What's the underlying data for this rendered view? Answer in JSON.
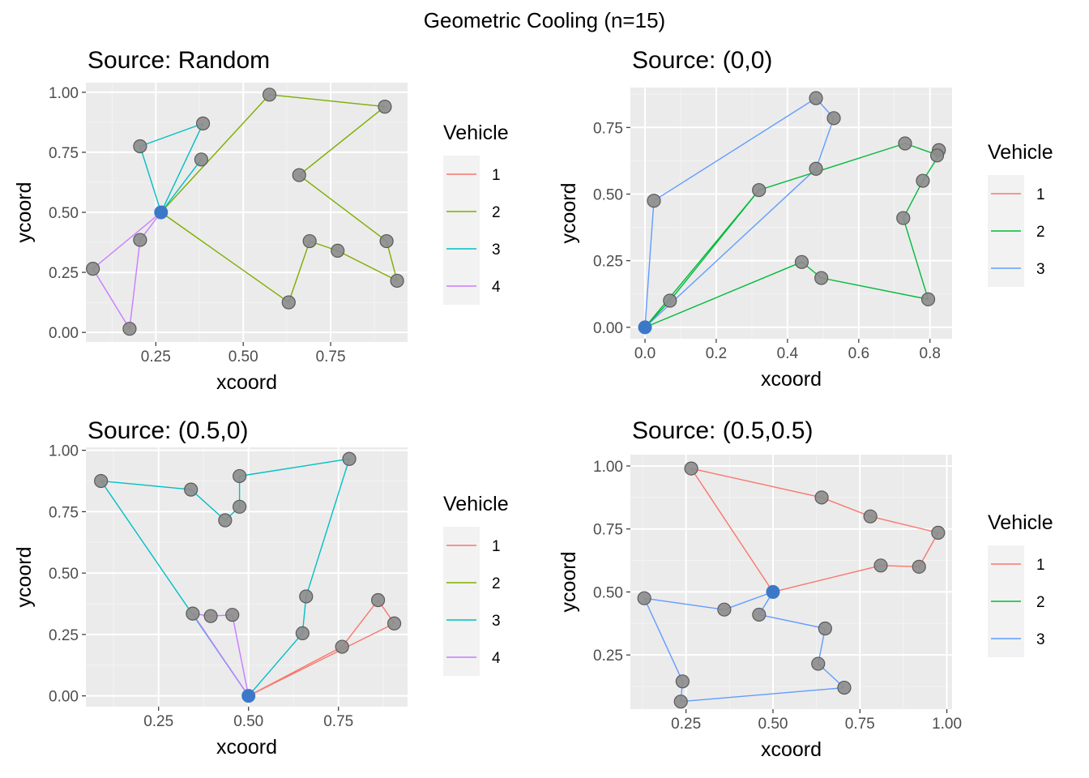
{
  "figure": {
    "title": "Geometric Cooling (n=15)",
    "colors": {
      "panel_bg": "#EBEBEB",
      "grid_major": "#FFFFFF",
      "grid_minor": "#F3F3F3",
      "point_fill": "#8C8C8C",
      "point_stroke": "#5A5A5A",
      "source_point": "#3C78C8",
      "vehicle_4": [
        "#F8766D",
        "#7CAE00",
        "#00BFC4",
        "#C77CFF"
      ],
      "vehicle_3": [
        "#F8766D",
        "#00BA38",
        "#619CFF"
      ]
    }
  },
  "chart_data": [
    {
      "type": "line",
      "title": "Source: Random",
      "xlabel": "xcoord",
      "ylabel": "ycoord",
      "xlim": [
        0.05,
        0.97
      ],
      "ylim": [
        -0.04,
        1.04
      ],
      "xticks": [
        {
          "v": 0.25,
          "label": "0.25"
        },
        {
          "v": 0.5,
          "label": "0.50"
        },
        {
          "v": 0.75,
          "label": "0.75"
        }
      ],
      "yticks": [
        {
          "v": 0,
          "label": "0.00"
        },
        {
          "v": 0.25,
          "label": "0.25"
        },
        {
          "v": 0.5,
          "label": "0.50"
        },
        {
          "v": 0.75,
          "label": "0.75"
        },
        {
          "v": 1,
          "label": "1.00"
        }
      ],
      "legend": {
        "title": "Vehicle",
        "entries": [
          "1",
          "2",
          "3",
          "4"
        ],
        "palette": "vehicle_4",
        "placement": "right"
      },
      "source": [
        0.265,
        0.5
      ],
      "points": [
        [
          0.575,
          0.99
        ],
        [
          0.905,
          0.94
        ],
        [
          0.66,
          0.655
        ],
        [
          0.91,
          0.38
        ],
        [
          0.94,
          0.215
        ],
        [
          0.69,
          0.38
        ],
        [
          0.77,
          0.34
        ],
        [
          0.63,
          0.125
        ],
        [
          0.385,
          0.87
        ],
        [
          0.205,
          0.775
        ],
        [
          0.38,
          0.72
        ],
        [
          0.205,
          0.385
        ],
        [
          0.07,
          0.265
        ],
        [
          0.175,
          0.015
        ]
      ],
      "routes": [
        {
          "vehicle": 2,
          "path": [
            [
              0.265,
              0.5
            ],
            [
              0.575,
              0.99
            ],
            [
              0.905,
              0.94
            ],
            [
              0.66,
              0.655
            ],
            [
              0.91,
              0.38
            ],
            [
              0.94,
              0.215
            ]
          ]
        },
        {
          "vehicle": 2,
          "path": [
            [
              0.265,
              0.5
            ],
            [
              0.63,
              0.125
            ],
            [
              0.69,
              0.38
            ],
            [
              0.77,
              0.34
            ],
            [
              0.94,
              0.215
            ]
          ]
        },
        {
          "vehicle": 3,
          "path": [
            [
              0.265,
              0.5
            ],
            [
              0.385,
              0.87
            ],
            [
              0.205,
              0.775
            ],
            [
              0.265,
              0.5
            ],
            [
              0.38,
              0.72
            ],
            [
              0.265,
              0.5
            ]
          ]
        },
        {
          "vehicle": 4,
          "path": [
            [
              0.265,
              0.5
            ],
            [
              0.07,
              0.265
            ],
            [
              0.175,
              0.015
            ],
            [
              0.205,
              0.385
            ],
            [
              0.265,
              0.5
            ]
          ]
        }
      ]
    },
    {
      "type": "line",
      "title": "Source: (0,0)",
      "xlabel": "xcoord",
      "ylabel": "ycoord",
      "xlim": [
        -0.041,
        0.862
      ],
      "ylim": [
        -0.043,
        0.9
      ],
      "xticks": [
        {
          "v": 0,
          "label": "0.0"
        },
        {
          "v": 0.2,
          "label": "0.2"
        },
        {
          "v": 0.4,
          "label": "0.4"
        },
        {
          "v": 0.6,
          "label": "0.6"
        },
        {
          "v": 0.8,
          "label": "0.8"
        }
      ],
      "yticks": [
        {
          "v": 0,
          "label": "0.00"
        },
        {
          "v": 0.25,
          "label": "0.25"
        },
        {
          "v": 0.5,
          "label": "0.50"
        },
        {
          "v": 0.75,
          "label": "0.75"
        }
      ],
      "legend": {
        "title": "Vehicle",
        "entries": [
          "1",
          "2",
          "3"
        ],
        "palette": "vehicle_3",
        "placement": "right"
      },
      "source": [
        0.0,
        0.0
      ],
      "points": [
        [
          0.48,
          0.86
        ],
        [
          0.53,
          0.785
        ],
        [
          0.025,
          0.475
        ],
        [
          0.48,
          0.595
        ],
        [
          0.73,
          0.69
        ],
        [
          0.825,
          0.665
        ],
        [
          0.82,
          0.645
        ],
        [
          0.32,
          0.515
        ],
        [
          0.78,
          0.55
        ],
        [
          0.725,
          0.41
        ],
        [
          0.07,
          0.1
        ],
        [
          0.44,
          0.245
        ],
        [
          0.495,
          0.185
        ],
        [
          0.795,
          0.105
        ]
      ],
      "routes": [
        {
          "vehicle": 3,
          "path": [
            [
              0.0,
              0.0
            ],
            [
              0.025,
              0.475
            ],
            [
              0.48,
              0.86
            ],
            [
              0.53,
              0.785
            ],
            [
              0.48,
              0.595
            ],
            [
              0.0,
              0.0
            ]
          ]
        },
        {
          "vehicle": 2,
          "path": [
            [
              0.0,
              0.0
            ],
            [
              0.32,
              0.515
            ],
            [
              0.73,
              0.69
            ],
            [
              0.825,
              0.645
            ],
            [
              0.78,
              0.55
            ],
            [
              0.725,
              0.41
            ],
            [
              0.795,
              0.105
            ],
            [
              0.495,
              0.185
            ],
            [
              0.44,
              0.245
            ],
            [
              0.0,
              0.0
            ]
          ]
        },
        {
          "vehicle": 2,
          "path": [
            [
              0.0,
              0.0
            ],
            [
              0.07,
              0.1
            ],
            [
              0.32,
              0.515
            ]
          ]
        }
      ]
    },
    {
      "type": "line",
      "title": "Source: (0.5,0)",
      "xlabel": "xcoord",
      "ylabel": "ycoord",
      "xlim": [
        0.048,
        0.942
      ],
      "ylim": [
        -0.044,
        1.012
      ],
      "xticks": [
        {
          "v": 0.25,
          "label": "0.25"
        },
        {
          "v": 0.5,
          "label": "0.50"
        },
        {
          "v": 0.75,
          "label": "0.75"
        }
      ],
      "yticks": [
        {
          "v": 0,
          "label": "0.00"
        },
        {
          "v": 0.25,
          "label": "0.25"
        },
        {
          "v": 0.5,
          "label": "0.50"
        },
        {
          "v": 0.75,
          "label": "0.75"
        },
        {
          "v": 1,
          "label": "1.00"
        }
      ],
      "legend": {
        "title": "Vehicle",
        "entries": [
          "1",
          "2",
          "3",
          "4"
        ],
        "palette": "vehicle_4",
        "placement": "right"
      },
      "source": [
        0.5,
        0.0
      ],
      "points": [
        [
          0.09,
          0.875
        ],
        [
          0.34,
          0.84
        ],
        [
          0.435,
          0.715
        ],
        [
          0.475,
          0.77
        ],
        [
          0.475,
          0.895
        ],
        [
          0.78,
          0.965
        ],
        [
          0.345,
          0.335
        ],
        [
          0.395,
          0.325
        ],
        [
          0.455,
          0.33
        ],
        [
          0.66,
          0.405
        ],
        [
          0.65,
          0.255
        ],
        [
          0.86,
          0.39
        ],
        [
          0.905,
          0.295
        ],
        [
          0.76,
          0.2
        ]
      ],
      "routes": [
        {
          "vehicle": 3,
          "path": [
            [
              0.5,
              0.0
            ],
            [
              0.09,
              0.875
            ],
            [
              0.34,
              0.84
            ],
            [
              0.435,
              0.715
            ],
            [
              0.475,
              0.77
            ],
            [
              0.475,
              0.895
            ],
            [
              0.78,
              0.965
            ],
            [
              0.66,
              0.405
            ],
            [
              0.65,
              0.255
            ],
            [
              0.5,
              0.0
            ]
          ]
        },
        {
          "vehicle": 4,
          "path": [
            [
              0.5,
              0.0
            ],
            [
              0.345,
              0.335
            ],
            [
              0.395,
              0.325
            ],
            [
              0.455,
              0.33
            ],
            [
              0.5,
              0.0
            ]
          ]
        },
        {
          "vehicle": 1,
          "path": [
            [
              0.5,
              0.0
            ],
            [
              0.76,
              0.2
            ],
            [
              0.86,
              0.39
            ],
            [
              0.905,
              0.295
            ],
            [
              0.5,
              0.0
            ]
          ]
        }
      ]
    },
    {
      "type": "line",
      "title": "Source: (0.5,0.5)",
      "xlabel": "xcoord",
      "ylabel": "ycoord",
      "xlim": [
        0.09,
        1.015
      ],
      "ylim": [
        0.035,
        1.045
      ],
      "xticks": [
        {
          "v": 0.25,
          "label": "0.25"
        },
        {
          "v": 0.5,
          "label": "0.50"
        },
        {
          "v": 0.75,
          "label": "0.75"
        },
        {
          "v": 1.0,
          "label": "1.00"
        }
      ],
      "yticks": [
        {
          "v": 0.25,
          "label": "0.25"
        },
        {
          "v": 0.5,
          "label": "0.50"
        },
        {
          "v": 0.75,
          "label": "0.75"
        },
        {
          "v": 1.0,
          "label": "1.00"
        }
      ],
      "legend": {
        "title": "Vehicle",
        "entries": [
          "1",
          "2",
          "3"
        ],
        "palette": "vehicle_3",
        "placement": "right"
      },
      "source": [
        0.5,
        0.5
      ],
      "points": [
        [
          0.265,
          0.99
        ],
        [
          0.64,
          0.875
        ],
        [
          0.78,
          0.8
        ],
        [
          0.975,
          0.735
        ],
        [
          0.92,
          0.6
        ],
        [
          0.81,
          0.605
        ],
        [
          0.13,
          0.475
        ],
        [
          0.36,
          0.43
        ],
        [
          0.46,
          0.41
        ],
        [
          0.65,
          0.355
        ],
        [
          0.63,
          0.215
        ],
        [
          0.705,
          0.12
        ],
        [
          0.24,
          0.145
        ],
        [
          0.235,
          0.065
        ]
      ],
      "routes": [
        {
          "vehicle": 1,
          "path": [
            [
              0.5,
              0.5
            ],
            [
              0.265,
              0.99
            ],
            [
              0.64,
              0.875
            ],
            [
              0.78,
              0.8
            ],
            [
              0.975,
              0.735
            ],
            [
              0.92,
              0.6
            ],
            [
              0.81,
              0.605
            ],
            [
              0.5,
              0.5
            ]
          ]
        },
        {
          "vehicle": 3,
          "path": [
            [
              0.5,
              0.5
            ],
            [
              0.36,
              0.43
            ],
            [
              0.13,
              0.475
            ],
            [
              0.24,
              0.145
            ],
            [
              0.235,
              0.065
            ],
            [
              0.705,
              0.12
            ],
            [
              0.63,
              0.215
            ],
            [
              0.65,
              0.355
            ],
            [
              0.46,
              0.41
            ],
            [
              0.5,
              0.5
            ]
          ]
        }
      ]
    }
  ]
}
